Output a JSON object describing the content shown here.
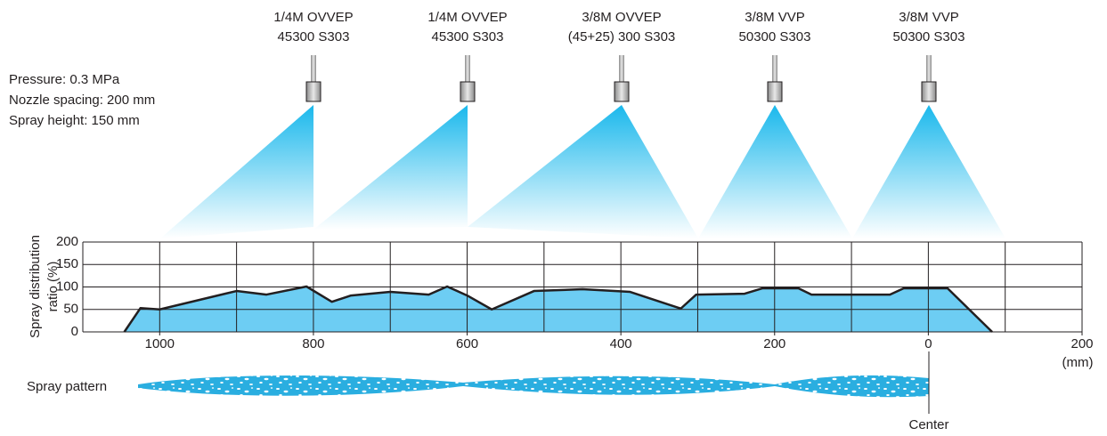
{
  "conditions": [
    "Pressure: 0.3 MPa",
    "Nozzle spacing: 200 mm",
    "Spray height: 150 mm"
  ],
  "nozzles": [
    {
      "line1": "1/4M OVVEP",
      "line2": "45300 S303"
    },
    {
      "line1": "1/4M OVVEP",
      "line2": "45300 S303"
    },
    {
      "line1": "3/8M OVVEP",
      "line2": "(45+25) 300 S303"
    },
    {
      "line1": "3/8M VVP",
      "line2": "50300 S303"
    },
    {
      "line1": "3/8M VVP",
      "line2": "50300 S303"
    }
  ],
  "chart_data": {
    "type": "area",
    "ylabel_lines": [
      "Spray distribution",
      "ratio (%)"
    ],
    "x_unit": "(mm)",
    "x": [
      1046,
      1025,
      1000,
      900,
      861,
      809,
      776,
      751,
      700,
      650,
      626,
      600,
      568,
      513,
      450,
      388,
      322,
      302,
      239,
      216,
      169,
      152,
      50,
      32,
      -25,
      -83
    ],
    "values": [
      0,
      53,
      50,
      91,
      83,
      101,
      67,
      81,
      89,
      83,
      101,
      81,
      50,
      91,
      95,
      89,
      52,
      83,
      85,
      97,
      97,
      83,
      83,
      97,
      97,
      0
    ],
    "color": "#6dcdf3",
    "line_color": "#231f20",
    "xlim": [
      1100,
      -200
    ],
    "xticks": [
      1000,
      800,
      600,
      400,
      200,
      0,
      {
        "value": -200,
        "label": "200"
      }
    ],
    "xgrid": [
      1100,
      1000,
      900,
      800,
      700,
      600,
      500,
      400,
      300,
      200,
      100,
      0,
      -100,
      -200
    ],
    "ylim": [
      0,
      200
    ],
    "yticks": [
      0,
      50,
      100,
      150,
      200
    ],
    "grid": true
  },
  "pattern_label": "Spray pattern",
  "center_label": "Center"
}
